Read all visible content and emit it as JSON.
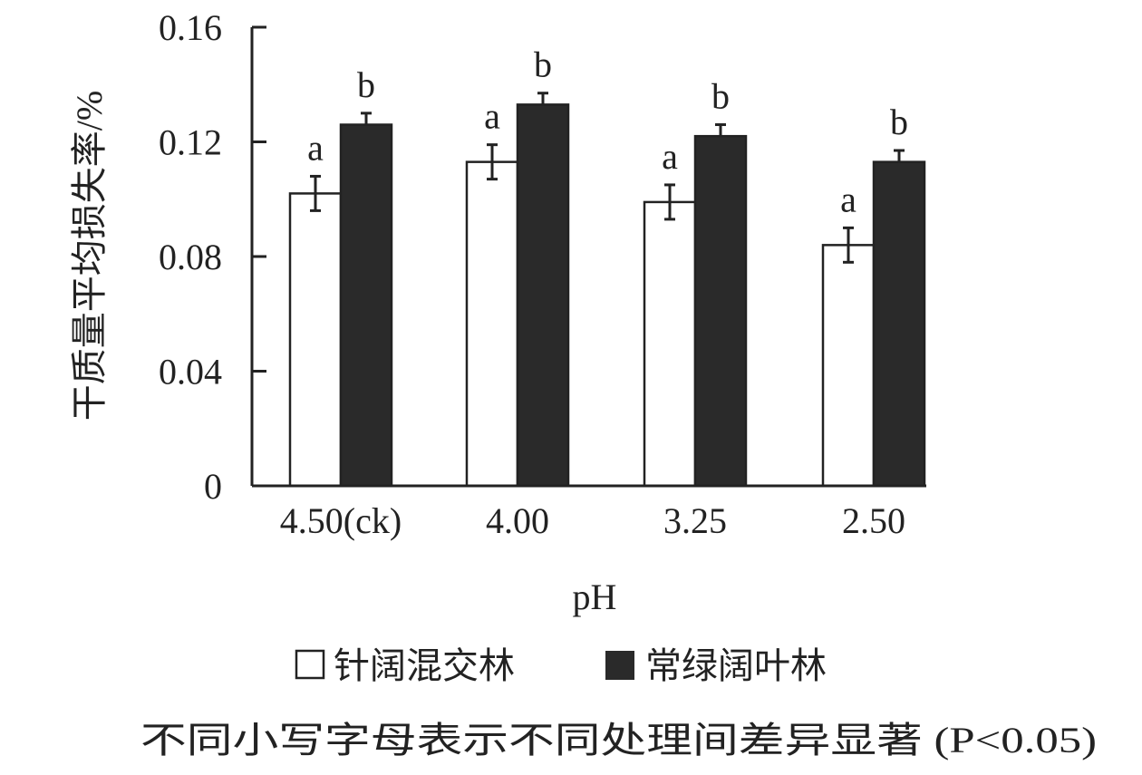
{
  "chart_data": {
    "type": "bar",
    "title": "",
    "xlabel": "pH",
    "ylabel": "干质量平均损失率/%",
    "ylim": [
      0,
      0.16
    ],
    "yticks": [
      "0",
      "0.04",
      "0.08",
      "0.12",
      "0.16"
    ],
    "ytick_values": [
      0,
      0.04,
      0.08,
      0.12,
      0.16
    ],
    "categories": [
      "4.50(ck)",
      "4.00",
      "3.25",
      "2.50"
    ],
    "series": [
      {
        "name": "针阔混交林",
        "color": "#ffffff",
        "values": [
          0.102,
          0.113,
          0.099,
          0.084
        ],
        "errors": [
          0.006,
          0.006,
          0.006,
          0.006
        ],
        "letters": [
          "a",
          "a",
          "a",
          "a"
        ]
      },
      {
        "name": "常绿阔叶林",
        "color": "#2a2a2a",
        "values": [
          0.126,
          0.133,
          0.122,
          0.113
        ],
        "errors": [
          0.004,
          0.004,
          0.004,
          0.004
        ],
        "letters": [
          "b",
          "b",
          "b",
          "b"
        ]
      }
    ],
    "legend_position": "bottom",
    "grid": false,
    "note": "不同小写字母表示不同处理间差异显著 (P<0.05)"
  }
}
